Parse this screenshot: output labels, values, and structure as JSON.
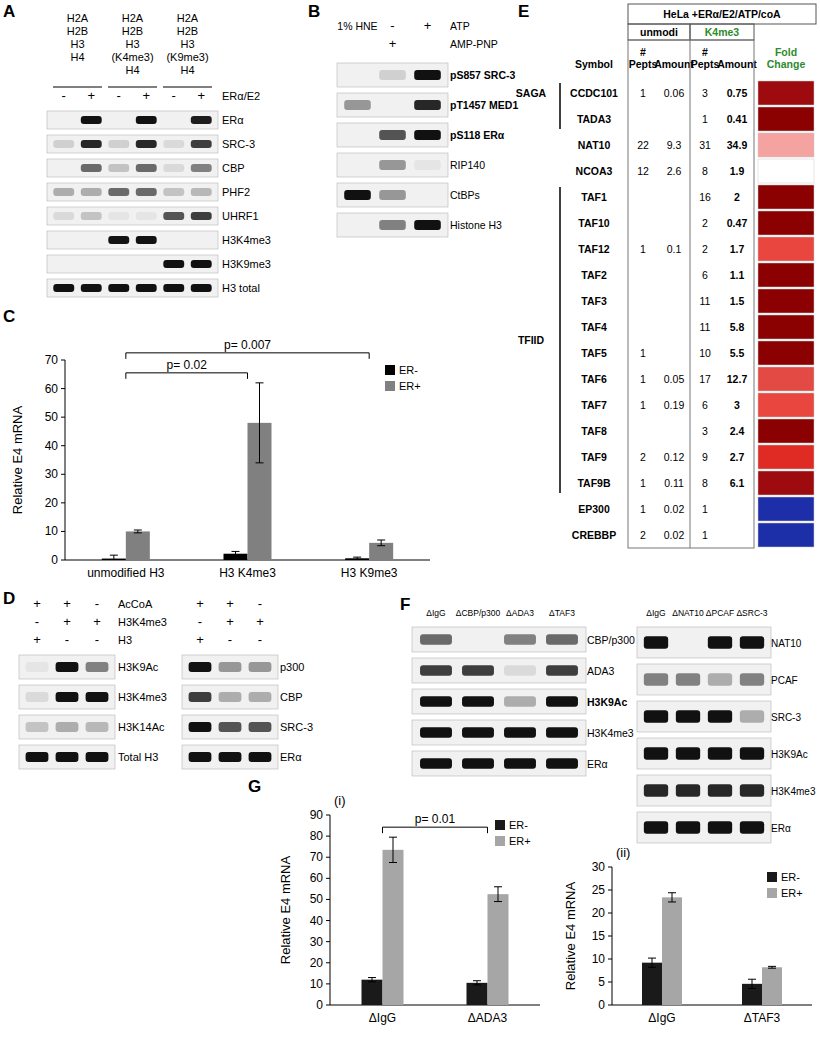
{
  "panel_labels": [
    "A",
    "B",
    "C",
    "D",
    "E",
    "F",
    "G"
  ],
  "chart_data": [
    {
      "type": "bar",
      "ylabel": "Relative E4 mRNA",
      "categories": [
        "unmodified H3",
        "H3 K4me3",
        "H3 K9me3"
      ],
      "series": [
        {
          "name": "ER-",
          "color": "#000000",
          "values": [
            0.5,
            2.2,
            0.6
          ],
          "errors": [
            1.2,
            0.8,
            0.4
          ]
        },
        {
          "name": "ER+",
          "color": "#808080",
          "values": [
            10,
            48,
            6
          ],
          "errors": [
            0.5,
            14,
            1
          ]
        }
      ],
      "ylim": [
        0,
        70
      ],
      "yticks": [
        0,
        10,
        20,
        30,
        40,
        50,
        60,
        70
      ],
      "legend": "upper right",
      "annotations": [
        {
          "text": "p= 0.02",
          "between": [
            0,
            1
          ]
        },
        {
          "text": "p= 0.007",
          "between": [
            0,
            2
          ]
        }
      ]
    },
    {
      "type": "bar",
      "title": "(i)",
      "ylabel": "Relative E4 mRNA",
      "categories": [
        "ΔIgG",
        "ΔADA3"
      ],
      "series": [
        {
          "name": "ER-",
          "color": "#1a1a1a",
          "values": [
            12,
            10.5
          ],
          "errors": [
            1,
            1
          ]
        },
        {
          "name": "ER+",
          "color": "#a6a6a6",
          "values": [
            73.5,
            52.5
          ],
          "errors": [
            6,
            3.5
          ]
        }
      ],
      "ylim": [
        0,
        90
      ],
      "yticks": [
        0,
        10,
        20,
        30,
        40,
        50,
        60,
        70,
        80,
        90
      ],
      "legend": "upper right",
      "annotations": [
        {
          "text": "p= 0.01",
          "between": [
            0,
            1
          ]
        }
      ]
    },
    {
      "type": "bar",
      "title": "(ii)",
      "ylabel": "Relative E4 mRNA",
      "categories": [
        "ΔIgG",
        "ΔTAF3"
      ],
      "series": [
        {
          "name": "ER-",
          "color": "#1a1a1a",
          "values": [
            9.2,
            4.6
          ],
          "errors": [
            1,
            1
          ]
        },
        {
          "name": "ER+",
          "color": "#a6a6a6",
          "values": [
            23.4,
            8.2
          ],
          "errors": [
            1,
            0.2
          ]
        }
      ],
      "ylim": [
        0,
        30
      ],
      "yticks": [
        0,
        5,
        10,
        15,
        20,
        25,
        30
      ],
      "legend": "upper right"
    }
  ],
  "blots": [
    {
      "groups": [
        {
          "lines": [
            "H2A",
            "H2B",
            "H3",
            "H4"
          ]
        },
        {
          "lines": [
            "H2A",
            "H2B",
            "H3",
            "(K4me3)",
            "H4"
          ]
        },
        {
          "lines": [
            "H2A",
            "H2B",
            "H3",
            "(K9me3)",
            "H4"
          ]
        }
      ],
      "header": [
        {
          "label": "ERα/E2",
          "cells": [
            "-",
            "+",
            "-",
            "+",
            "-",
            "+"
          ]
        }
      ],
      "rows": [
        {
          "label": "ERα",
          "bands": [
            0,
            1,
            0,
            1,
            0,
            0.95
          ]
        },
        {
          "label": "SRC-3",
          "bands": [
            0.15,
            0.9,
            0.15,
            0.9,
            0.1,
            0.8
          ]
        },
        {
          "label": "CBP",
          "bands": [
            0,
            0.6,
            0.2,
            0.6,
            0.1,
            0.5
          ]
        },
        {
          "label": "PHF2",
          "bands": [
            0.3,
            0.3,
            0.6,
            0.6,
            0.2,
            0.25
          ]
        },
        {
          "label": "UHRF1",
          "bands": [
            0.1,
            0.2,
            0.05,
            0.05,
            0.7,
            0.8
          ]
        },
        {
          "label": "H3K4me3",
          "bands": [
            0,
            0,
            1,
            1,
            0,
            0
          ]
        },
        {
          "label": "H3K9me3",
          "bands": [
            0,
            0,
            0,
            0,
            1,
            1
          ]
        },
        {
          "label": "H3 total",
          "bands": [
            1,
            1,
            1,
            1,
            1,
            1
          ]
        }
      ]
    },
    {
      "lane_labels": [
        "1% HNE",
        null,
        null
      ],
      "header": [
        {
          "label": "ATP",
          "cells": [
            null,
            "-",
            "+"
          ]
        },
        {
          "label": "AMP-PNP",
          "cells": [
            null,
            "+",
            null
          ]
        }
      ],
      "rows": [
        {
          "label": "pS857 SRC-3",
          "bold": true,
          "bands": [
            0,
            0.15,
            1
          ]
        },
        {
          "label": "pT1457 MED1",
          "bold": true,
          "bands": [
            0.4,
            0,
            0.9
          ]
        },
        {
          "label": "pS118 ERα",
          "bold": true,
          "bands": [
            0,
            0.7,
            1
          ]
        },
        {
          "label": "RIP140",
          "bands": [
            0,
            0.4,
            0.05
          ]
        },
        {
          "label": "CtBPs",
          "bands": [
            1,
            0.4,
            0
          ]
        },
        {
          "label": "Histone H3",
          "bands": [
            0,
            0.5,
            1
          ]
        }
      ]
    },
    {
      "header": [
        {
          "label": "AcCoA",
          "cells": [
            "+",
            "+",
            "-"
          ]
        },
        {
          "label": "H3K4me3",
          "cells": [
            "-",
            "+",
            "+"
          ]
        },
        {
          "label": "H3",
          "cells": [
            "+",
            "-",
            "-"
          ]
        }
      ],
      "rows": [
        {
          "label": "H3K9Ac",
          "bands": [
            0.05,
            1,
            0.5
          ]
        },
        {
          "label": "H3K4me3",
          "bands": [
            0.1,
            1,
            1
          ]
        },
        {
          "label": "H3K14Ac",
          "bands": [
            0.2,
            0.3,
            0.25
          ]
        },
        {
          "label": "Total H3",
          "bands": [
            1,
            1,
            1
          ]
        }
      ]
    },
    {
      "header": [
        {
          "cells": [
            "+",
            "+",
            "-"
          ]
        },
        {
          "cells": [
            "-",
            "+",
            "+"
          ]
        },
        {
          "cells": [
            "+",
            "-",
            "-"
          ]
        }
      ],
      "rows": [
        {
          "label": "p300",
          "bands": [
            1,
            0.4,
            0.4
          ]
        },
        {
          "label": "CBP",
          "bands": [
            0.8,
            0.3,
            0.3
          ]
        },
        {
          "label": "SRC-3",
          "bands": [
            1,
            0.7,
            0.7
          ]
        },
        {
          "label": "ERα",
          "bands": [
            1,
            1,
            1
          ]
        }
      ]
    },
    {
      "lane_labels": [
        "ΔIgG",
        "ΔCBP/p300",
        "ΔADA3",
        "ΔTAF3"
      ],
      "rows": [
        {
          "label": "CBP/p300",
          "bands": [
            0.6,
            0,
            0.5,
            0.6
          ]
        },
        {
          "label": "ADA3",
          "bands": [
            0.8,
            0.8,
            0.1,
            0.8
          ]
        },
        {
          "label": "H3K9Ac",
          "bold": true,
          "bands": [
            1,
            1,
            0.3,
            1
          ]
        },
        {
          "label": "H3K4me3",
          "bands": [
            1,
            1,
            1,
            1
          ]
        },
        {
          "label": "ERα",
          "bands": [
            1,
            1,
            1,
            1
          ]
        }
      ]
    },
    {
      "lane_labels": [
        "ΔIgG",
        "ΔNAT10",
        "ΔPCAF",
        "ΔSRC-3"
      ],
      "rows": [
        {
          "label": "NAT10",
          "bands": [
            1,
            0,
            1,
            1
          ]
        },
        {
          "label": "PCAF",
          "bands": [
            0.5,
            0.5,
            0.3,
            0.5
          ]
        },
        {
          "label": "SRC-3",
          "bands": [
            1,
            1,
            1,
            0.3
          ]
        },
        {
          "label": "H3K9Ac",
          "bands": [
            1,
            1,
            1,
            1
          ]
        },
        {
          "label": "H3K4me3",
          "bands": [
            0.9,
            0.9,
            0.9,
            0.9
          ]
        },
        {
          "label": "ERα",
          "bands": [
            1,
            1,
            1,
            1
          ]
        }
      ]
    }
  ],
  "table": {
    "title": "HeLa +ERα/E2/ATP/coA",
    "column_groups": [
      "unmodi",
      "K4me3"
    ],
    "columns": [
      "Symbol",
      "# Pepts",
      "Amount",
      "# Pepts",
      "Amount",
      "Fold Change"
    ],
    "sections": [
      {
        "label": "SAGA",
        "rows": [
          {
            "symbol": "CCDC101",
            "cells": [
              1,
              0.06,
              3,
              0.75
            ],
            "fold_color": "#9e0b0f"
          },
          {
            "symbol": "TADA3",
            "cells": [
              null,
              null,
              1,
              0.41
            ],
            "fold_color": "#8b0000"
          }
        ]
      },
      {
        "rows": [
          {
            "symbol": "NAT10",
            "cells": [
              22,
              9.3,
              31,
              34.9
            ],
            "fold_color": "#f4a3a0"
          },
          {
            "symbol": "NCOA3",
            "cells": [
              12,
              2.6,
              8,
              1.9
            ],
            "fold_color": "#ffffff"
          }
        ]
      },
      {
        "label": "TFIID",
        "rows": [
          {
            "symbol": "TAF1",
            "cells": [
              null,
              null,
              16,
              2
            ],
            "fold_color": "#8b0000"
          },
          {
            "symbol": "TAF10",
            "cells": [
              null,
              null,
              2,
              0.47
            ],
            "fold_color": "#8b0000"
          },
          {
            "symbol": "TAF12",
            "cells": [
              1,
              0.1,
              2,
              1.7
            ],
            "fold_color": "#e8463f"
          },
          {
            "symbol": "TAF2",
            "cells": [
              null,
              null,
              6,
              1.1
            ],
            "fold_color": "#8b0000"
          },
          {
            "symbol": "TAF3",
            "cells": [
              null,
              null,
              11,
              1.5
            ],
            "fold_color": "#8b0000"
          },
          {
            "symbol": "TAF4",
            "cells": [
              null,
              null,
              11,
              5.8
            ],
            "fold_color": "#8b0000"
          },
          {
            "symbol": "TAF5",
            "cells": [
              1,
              null,
              10,
              5.5
            ],
            "fold_color": "#8b0000"
          },
          {
            "symbol": "TAF6",
            "cells": [
              1,
              0.05,
              17,
              12.7
            ],
            "fold_color": "#e24a43"
          },
          {
            "symbol": "TAF7",
            "cells": [
              1,
              0.19,
              6,
              3
            ],
            "fold_color": "#e8463f"
          },
          {
            "symbol": "TAF8",
            "cells": [
              null,
              null,
              3,
              2.4
            ],
            "fold_color": "#8b0000"
          },
          {
            "symbol": "TAF9",
            "cells": [
              2,
              0.12,
              9,
              2.7
            ],
            "fold_color": "#e02a24"
          },
          {
            "symbol": "TAF9B",
            "cells": [
              1,
              0.11,
              8,
              6.1
            ],
            "fold_color": "#9e0b0f"
          }
        ]
      },
      {
        "rows": [
          {
            "symbol": "EP300",
            "cells": [
              1,
              0.02,
              1,
              null
            ],
            "fold_color": "#1c2fa8"
          },
          {
            "symbol": "CREBBP",
            "cells": [
              2,
              0.02,
              1,
              null
            ],
            "fold_color": "#1c2fa8"
          }
        ]
      }
    ]
  }
}
